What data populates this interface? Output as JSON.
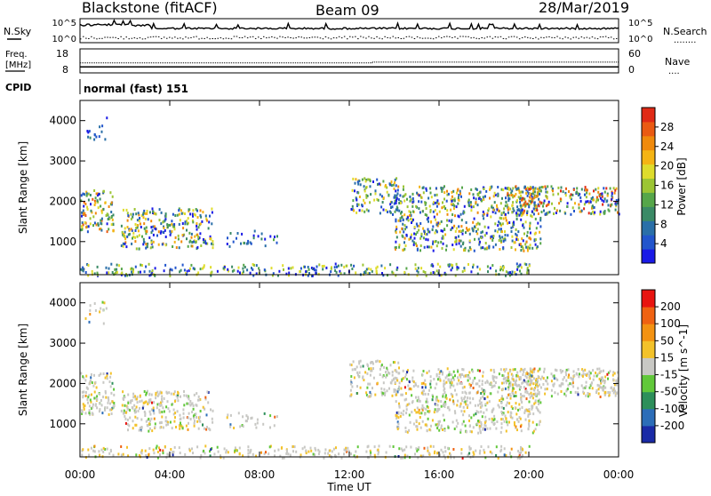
{
  "header": {
    "station": "Blackstone (fitACF)",
    "beam": "Beam 09",
    "date": "28/Mar/2019"
  },
  "noise_panel": {
    "left_label": "N.Sky",
    "right_label": "N.Search",
    "right_legend": "........",
    "left_ticks": [
      "10^5",
      "10^0"
    ],
    "right_ticks": [
      "10^5",
      "10^0"
    ]
  },
  "freq_panel": {
    "left_label_line1": "Freq.",
    "left_label_line2": "[MHz]",
    "right_label": "Nave",
    "right_legend": "....",
    "left_ticks": [
      "18",
      "8"
    ],
    "right_ticks": [
      "60",
      "0"
    ],
    "freq_mhz": 10.5,
    "nave_before": 25,
    "nave_after": 27,
    "nave_step_time": "13:00"
  },
  "cpid_panel": {
    "label": "CPID",
    "program": "normal (fast) 151"
  },
  "chart_data": [
    {
      "type": "heatmap",
      "name": "power",
      "ylabel": "Slant Range [km]",
      "xlabel": "Time UT",
      "x_ticks": [
        "00:00",
        "04:00",
        "08:00",
        "12:00",
        "16:00",
        "20:00",
        "00:00"
      ],
      "y_ticks": [
        1000,
        2000,
        3000,
        4000
      ],
      "ylim": [
        180,
        4500
      ],
      "xlim_hours": [
        0,
        24
      ],
      "colorbar": {
        "label": "Power [dB]",
        "ticks": [
          "4",
          "8",
          "12",
          "16",
          "20",
          "24",
          "28"
        ],
        "colors": [
          "#1a1ae6",
          "#2255cc",
          "#2a6fa8",
          "#3b8a66",
          "#56a64a",
          "#9cc534",
          "#dedc2c",
          "#f4b414",
          "#f08a0c",
          "#ea5a12",
          "#e02a16"
        ]
      },
      "regions": [
        {
          "t0": 0.0,
          "t1": 1.5,
          "r0": 1250,
          "r1": 2300,
          "level": 0.55
        },
        {
          "t0": 1.8,
          "t1": 5.9,
          "r0": 850,
          "r1": 1850,
          "level": 0.5
        },
        {
          "t0": 0.2,
          "t1": 1.2,
          "r0": 3500,
          "r1": 4100,
          "level": 0.2
        },
        {
          "t0": 0.0,
          "t1": 20.0,
          "r0": 180,
          "r1": 480,
          "level": 0.4
        },
        {
          "t0": 6.5,
          "t1": 8.8,
          "r0": 900,
          "r1": 1300,
          "level": 0.25
        },
        {
          "t0": 12.0,
          "t1": 14.2,
          "r0": 1700,
          "r1": 2600,
          "level": 0.45
        },
        {
          "t0": 14.0,
          "t1": 20.5,
          "r0": 800,
          "r1": 2400,
          "level": 0.5
        },
        {
          "t0": 19.0,
          "t1": 24.0,
          "r0": 1700,
          "r1": 2400,
          "level": 0.6
        }
      ]
    },
    {
      "type": "heatmap",
      "name": "velocity",
      "ylabel": "Slant Range [km]",
      "xlabel": "Time UT",
      "x_ticks": [
        "00:00",
        "04:00",
        "08:00",
        "12:00",
        "16:00",
        "20:00",
        "00:00"
      ],
      "y_ticks": [
        1000,
        2000,
        3000,
        4000
      ],
      "ylim": [
        180,
        4500
      ],
      "xlim_hours": [
        0,
        24
      ],
      "colorbar": {
        "label": "Velocity [m s^-1]",
        "ticks": [
          "200",
          "100",
          "50",
          "15",
          "-15",
          "-50",
          "-100",
          "-200"
        ],
        "colors": [
          "#1a2aa6",
          "#2c6db8",
          "#2d8f5a",
          "#61c83a",
          "#c8c8c4",
          "#f3c22a",
          "#f39212",
          "#ef6212",
          "#e81410"
        ]
      },
      "regions": [
        {
          "t0": 0.0,
          "t1": 1.5,
          "r0": 1250,
          "r1": 2300,
          "level": 0.55
        },
        {
          "t0": 1.8,
          "t1": 5.9,
          "r0": 850,
          "r1": 1850,
          "level": 0.5
        },
        {
          "t0": 0.2,
          "t1": 1.2,
          "r0": 3500,
          "r1": 4100,
          "level": 0.2
        },
        {
          "t0": 0.0,
          "t1": 20.0,
          "r0": 180,
          "r1": 480,
          "level": 0.4
        },
        {
          "t0": 6.5,
          "t1": 8.8,
          "r0": 900,
          "r1": 1300,
          "level": 0.25
        },
        {
          "t0": 12.0,
          "t1": 14.2,
          "r0": 1700,
          "r1": 2600,
          "level": 0.45
        },
        {
          "t0": 14.0,
          "t1": 20.5,
          "r0": 800,
          "r1": 2400,
          "level": 0.5
        },
        {
          "t0": 19.0,
          "t1": 24.0,
          "r0": 1700,
          "r1": 2400,
          "level": 0.6
        }
      ]
    }
  ],
  "xaxis": {
    "label": "Time UT"
  }
}
